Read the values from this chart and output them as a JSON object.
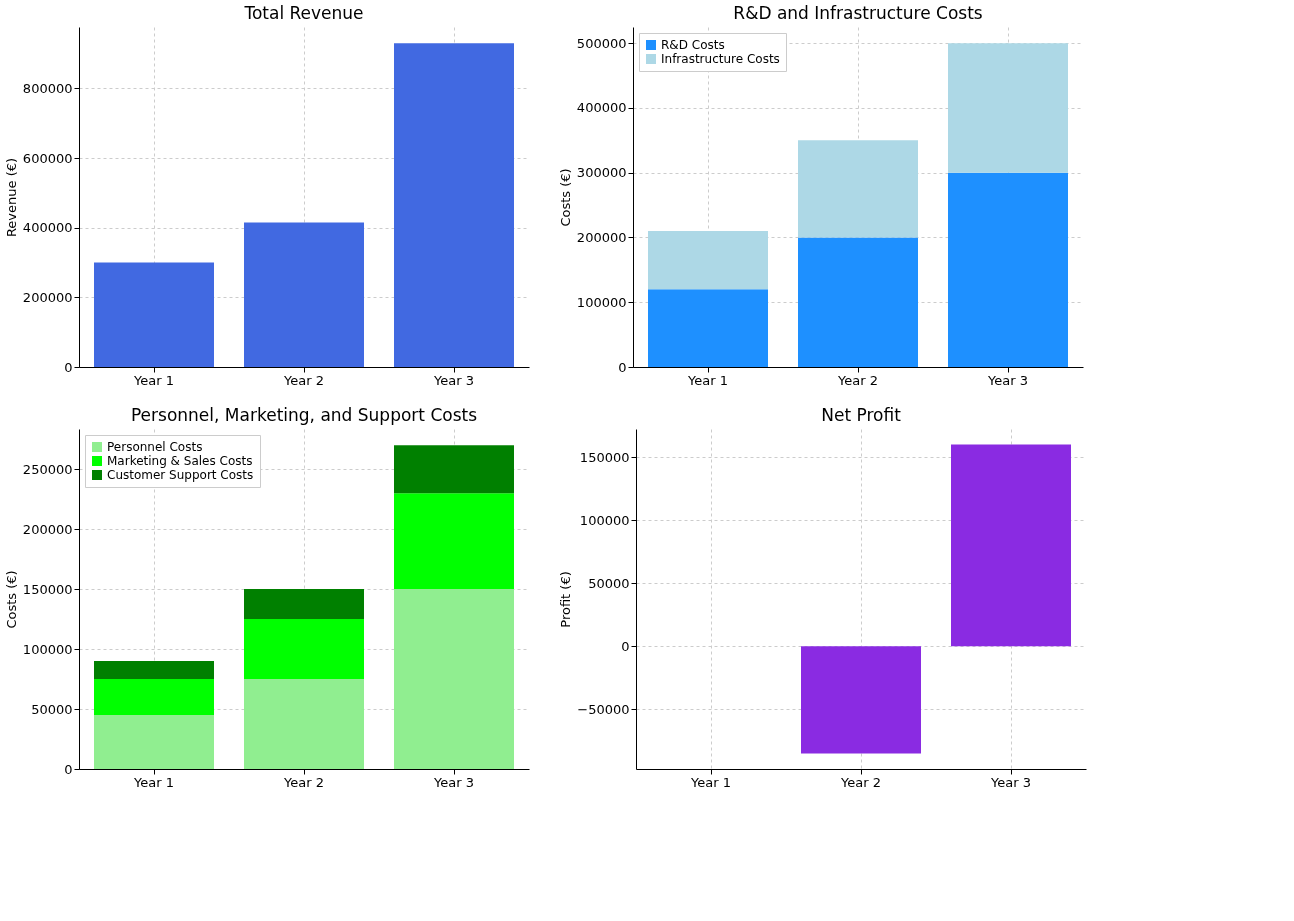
{
  "chart_data": [
    {
      "type": "bar",
      "title": "Total Revenue",
      "ylabel": "Revenue (€)",
      "categories": [
        "Year 1",
        "Year 2",
        "Year 3"
      ],
      "values": [
        300000,
        415000,
        930000
      ],
      "color": "#4169e1",
      "ylim": [
        0,
        976500
      ],
      "yticks": [
        0,
        200000,
        400000,
        600000,
        800000
      ],
      "grid": true
    },
    {
      "type": "bar",
      "title": "R&D and Infrastructure Costs",
      "ylabel": "Costs (€)",
      "categories": [
        "Year 1",
        "Year 2",
        "Year 3"
      ],
      "stacked": true,
      "series": [
        {
          "name": "R&D Costs",
          "color": "#1e90ff",
          "values": [
            120000,
            200000,
            300000
          ]
        },
        {
          "name": "Infrastructure Costs",
          "color": "#add8e6",
          "values": [
            90000,
            150000,
            200000
          ]
        }
      ],
      "ylim": [
        0,
        525000
      ],
      "yticks": [
        0,
        100000,
        200000,
        300000,
        400000,
        500000
      ],
      "grid": true,
      "legend": "top left"
    },
    {
      "type": "bar",
      "title": "Personnel, Marketing, and Support Costs",
      "ylabel": "Costs (€)",
      "categories": [
        "Year 1",
        "Year 2",
        "Year 3"
      ],
      "stacked": true,
      "series": [
        {
          "name": "Personnel Costs",
          "color": "#90ee90",
          "values": [
            45000,
            75000,
            150000
          ]
        },
        {
          "name": "Marketing & Sales Costs",
          "color": "#00ff00",
          "values": [
            30000,
            50000,
            80000
          ]
        },
        {
          "name": "Customer Support Costs",
          "color": "#008000",
          "values": [
            15000,
            25000,
            40000
          ]
        }
      ],
      "ylim": [
        0,
        283500
      ],
      "yticks": [
        0,
        50000,
        100000,
        150000,
        200000,
        250000
      ],
      "grid": true,
      "legend": "top left"
    },
    {
      "type": "bar",
      "title": "Net Profit",
      "ylabel": "Profit (€)",
      "categories": [
        "Year 1",
        "Year 2",
        "Year 3"
      ],
      "values": [
        0,
        -85000,
        160000
      ],
      "color": "#8a2be2",
      "ylim": [
        -97250,
        172250
      ],
      "yticks": [
        -50000,
        0,
        50000,
        100000,
        150000
      ],
      "grid": true
    }
  ]
}
